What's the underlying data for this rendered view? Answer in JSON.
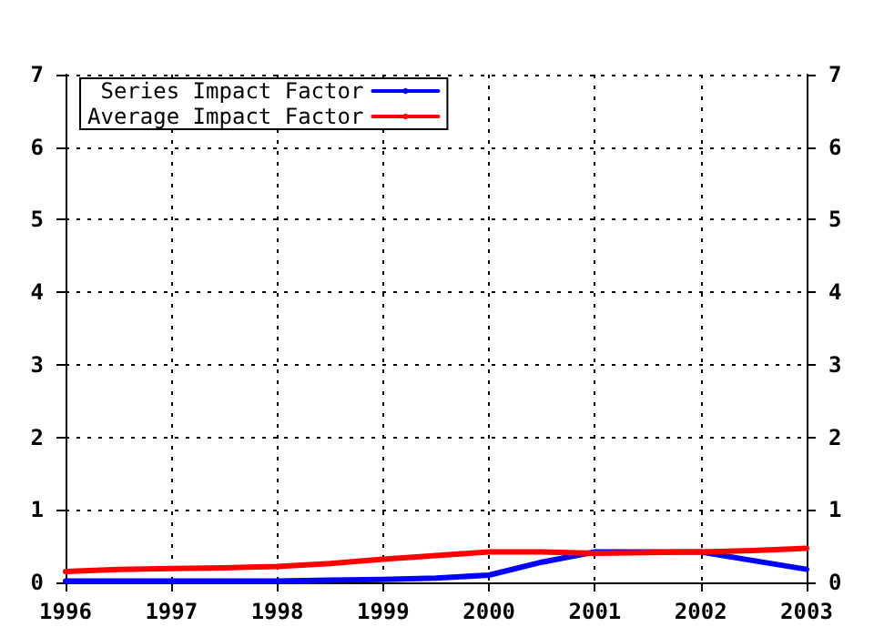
{
  "chart_data": {
    "type": "line",
    "x": [
      1996,
      1996.5,
      1997,
      1997.5,
      1998,
      1998.5,
      1999,
      1999.5,
      2000,
      2000.5,
      2001,
      2001.5,
      2002,
      2002.5,
      2003
    ],
    "series": [
      {
        "name": "Series Impact Factor",
        "color": "#0000ff",
        "values": [
          0.02,
          0.02,
          0.02,
          0.02,
          0.02,
          0.03,
          0.04,
          0.06,
          0.1,
          0.28,
          0.42,
          0.42,
          0.42,
          0.3,
          0.18
        ]
      },
      {
        "name": "Average Impact Factor",
        "color": "#ff0000",
        "values": [
          0.15,
          0.18,
          0.19,
          0.2,
          0.22,
          0.26,
          0.32,
          0.37,
          0.42,
          0.42,
          0.4,
          0.41,
          0.42,
          0.44,
          0.47
        ]
      }
    ],
    "xlim": [
      1996,
      2003
    ],
    "xticks": [
      1996,
      1997,
      1998,
      1999,
      2000,
      2001,
      2002,
      2003
    ],
    "ylim": [
      0,
      7
    ],
    "yticks": [
      0,
      1,
      2,
      3,
      4,
      5,
      6,
      7
    ],
    "y2lim": [
      0,
      7
    ],
    "y2ticks": [
      0,
      1,
      2,
      3,
      4,
      5,
      6,
      7
    ],
    "grid": true,
    "legend": "top left",
    "marker": "none",
    "line_style": "solid"
  }
}
